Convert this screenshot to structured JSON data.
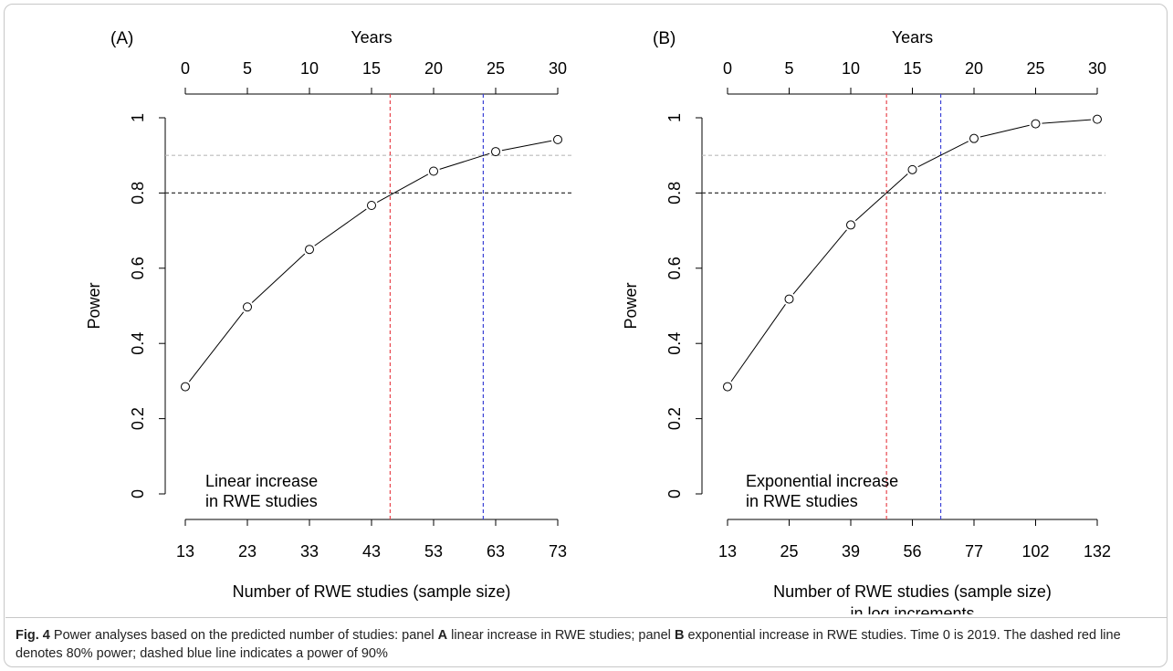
{
  "caption": {
    "figure_label": "Fig. 4",
    "segments": [
      {
        "text": " Power analyses based on the predicted number of studies: panel ",
        "bold": false
      },
      {
        "text": "A",
        "bold": true
      },
      {
        "text": " linear increase in RWE studies; panel ",
        "bold": false
      },
      {
        "text": "B",
        "bold": true
      },
      {
        "text": " exponential increase in RWE studies. Time 0 is 2019. The dashed red line denotes 80% power; dashed blue line indicates a power of 90%",
        "bold": false
      }
    ]
  },
  "colors": {
    "threshold_80": "#333333",
    "threshold_90": "#bbbbbb",
    "red_line": "#e8464e",
    "blue_line": "#3b42d6",
    "series": "#000000"
  },
  "chart_data": [
    {
      "type": "line",
      "panel_label": "(A)",
      "annotation": [
        "Linear increase",
        "in RWE studies"
      ],
      "xlabel": [
        "Number of RWE studies (sample size)"
      ],
      "ylabel": "Power",
      "ylim": [
        0,
        1
      ],
      "yticks": [
        "0",
        "0.2",
        "0.4",
        "0.6",
        "0.8",
        "1"
      ],
      "x": [
        "13",
        "23",
        "33",
        "43",
        "53",
        "63",
        "73"
      ],
      "top_axis": {
        "label": "Years",
        "ticks": [
          "0",
          "5",
          "10",
          "15",
          "20",
          "25",
          "30"
        ]
      },
      "series": [
        {
          "values": [
            0.285,
            0.497,
            0.65,
            0.767,
            0.858,
            0.91,
            0.942
          ]
        }
      ],
      "hlines": [
        {
          "y": 0.8,
          "style": "dashed",
          "color": "#333333"
        },
        {
          "y": 0.9,
          "style": "dashed",
          "color": "#bbbbbb"
        }
      ],
      "vlines": [
        {
          "x_year": 16.5,
          "color": "#e8464e",
          "style": "dashed"
        },
        {
          "x_year": 24.0,
          "color": "#3b42d6",
          "style": "dashed"
        }
      ]
    },
    {
      "type": "line",
      "panel_label": "(B)",
      "annotation": [
        "Exponential increase",
        "in RWE studies"
      ],
      "xlabel": [
        "Number of RWE studies (sample size)",
        "in log increments"
      ],
      "ylabel": "Power",
      "ylim": [
        0,
        1
      ],
      "yticks": [
        "0",
        "0.2",
        "0.4",
        "0.6",
        "0.8",
        "1"
      ],
      "x": [
        "13",
        "25",
        "39",
        "56",
        "77",
        "102",
        "132"
      ],
      "top_axis": {
        "label": "Years",
        "ticks": [
          "0",
          "5",
          "10",
          "15",
          "20",
          "25",
          "30"
        ]
      },
      "series": [
        {
          "values": [
            0.285,
            0.518,
            0.715,
            0.862,
            0.945,
            0.984,
            0.996
          ]
        }
      ],
      "hlines": [
        {
          "y": 0.8,
          "style": "dashed",
          "color": "#333333"
        },
        {
          "y": 0.9,
          "style": "dashed",
          "color": "#bbbbbb"
        }
      ],
      "vlines": [
        {
          "x_year": 12.9,
          "color": "#e8464e",
          "style": "dashed"
        },
        {
          "x_year": 17.3,
          "color": "#3b42d6",
          "style": "dashed"
        }
      ]
    }
  ]
}
